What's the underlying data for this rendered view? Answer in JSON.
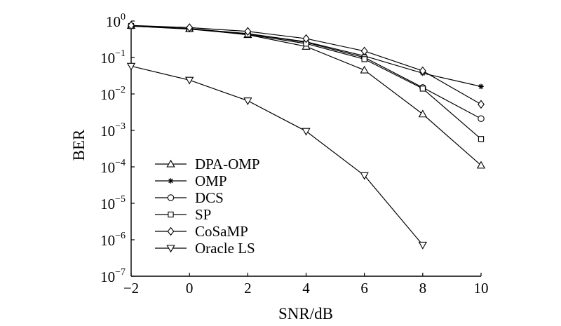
{
  "chart_data": {
    "type": "line",
    "title": "",
    "xlabel": "SNR/dB",
    "ylabel": "BER",
    "xlim": [
      -2,
      10
    ],
    "ylim": [
      1e-07,
      1
    ],
    "yscale": "log",
    "grid": false,
    "legend_position": "bottom-left",
    "x_ticks": [
      "−2",
      "0",
      "2",
      "4",
      "6",
      "8",
      "10"
    ],
    "y_ticks": [
      {
        "base": "10",
        "exp": "0"
      },
      {
        "base": "10",
        "exp": "−1"
      },
      {
        "base": "10",
        "exp": "−2"
      },
      {
        "base": "10",
        "exp": "−3"
      },
      {
        "base": "10",
        "exp": "−4"
      },
      {
        "base": "10",
        "exp": "−5"
      },
      {
        "base": "10",
        "exp": "−6"
      },
      {
        "base": "10",
        "exp": "−7"
      }
    ],
    "series": [
      {
        "name": "DPA-OMP",
        "marker": "triangle-up",
        "x": [
          -2,
          0,
          2,
          4,
          6,
          8,
          10
        ],
        "y": [
          0.75,
          0.62,
          0.42,
          0.2,
          0.045,
          0.0028,
          0.00011
        ]
      },
      {
        "name": "OMP",
        "marker": "star",
        "x": [
          -2,
          0,
          2,
          4,
          6,
          8,
          10
        ],
        "y": [
          0.72,
          0.62,
          0.45,
          0.27,
          0.11,
          0.037,
          0.016
        ]
      },
      {
        "name": "DCS",
        "marker": "circle",
        "x": [
          -2,
          0,
          2,
          4,
          6,
          8,
          10
        ],
        "y": [
          0.74,
          0.61,
          0.45,
          0.26,
          0.1,
          0.015,
          0.0021
        ]
      },
      {
        "name": "SP",
        "marker": "square",
        "x": [
          -2,
          0,
          2,
          4,
          6,
          8,
          10
        ],
        "y": [
          0.73,
          0.6,
          0.43,
          0.24,
          0.09,
          0.014,
          0.00058
        ]
      },
      {
        "name": "CoSaMP",
        "marker": "diamond",
        "x": [
          -2,
          0,
          2,
          4,
          6,
          8,
          10
        ],
        "y": [
          0.76,
          0.66,
          0.52,
          0.33,
          0.15,
          0.043,
          0.0052
        ]
      },
      {
        "name": "Oracle LS",
        "marker": "triangle-down",
        "x": [
          -2,
          0,
          2,
          4,
          6,
          8
        ],
        "y": [
          0.058,
          0.024,
          0.0065,
          0.00095,
          5.8e-05,
          7.2e-07
        ]
      }
    ]
  }
}
